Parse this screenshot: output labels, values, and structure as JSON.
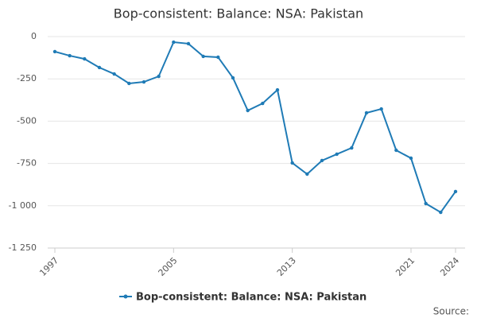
{
  "chart_data": {
    "type": "line",
    "title": "Bop-consistent: Balance: NSA: Pakistan",
    "x": [
      1997,
      1998,
      1999,
      2000,
      2001,
      2002,
      2003,
      2004,
      2005,
      2006,
      2007,
      2008,
      2009,
      2010,
      2011,
      2012,
      2013,
      2014,
      2015,
      2016,
      2017,
      2018,
      2019,
      2020,
      2021,
      2022,
      2023,
      2024
    ],
    "series": [
      {
        "name": "Bop-consistent: Balance: NSA: Pakistan",
        "color": "#1f7bb6",
        "values": [
          -89,
          -113,
          -132,
          -183,
          -221,
          -277,
          -268,
          -235,
          -33,
          -42,
          -117,
          -122,
          -244,
          -437,
          -395,
          -315,
          -747,
          -813,
          -733,
          -695,
          -658,
          -451,
          -428,
          -672,
          -719,
          -987,
          -1039,
          -916
        ]
      }
    ],
    "xlim": [
      1997,
      2024
    ],
    "xticks": [
      1997,
      2005,
      2013,
      2021,
      2024
    ],
    "ylim": [
      -1250,
      0
    ],
    "yticks": [
      0,
      -250,
      -500,
      -750,
      {
        "value": -1000,
        "label": "-1 000"
      },
      {
        "value": -1250,
        "label": "-1 250"
      }
    ],
    "grid": true,
    "legend": "bottom",
    "source": "Source:"
  }
}
